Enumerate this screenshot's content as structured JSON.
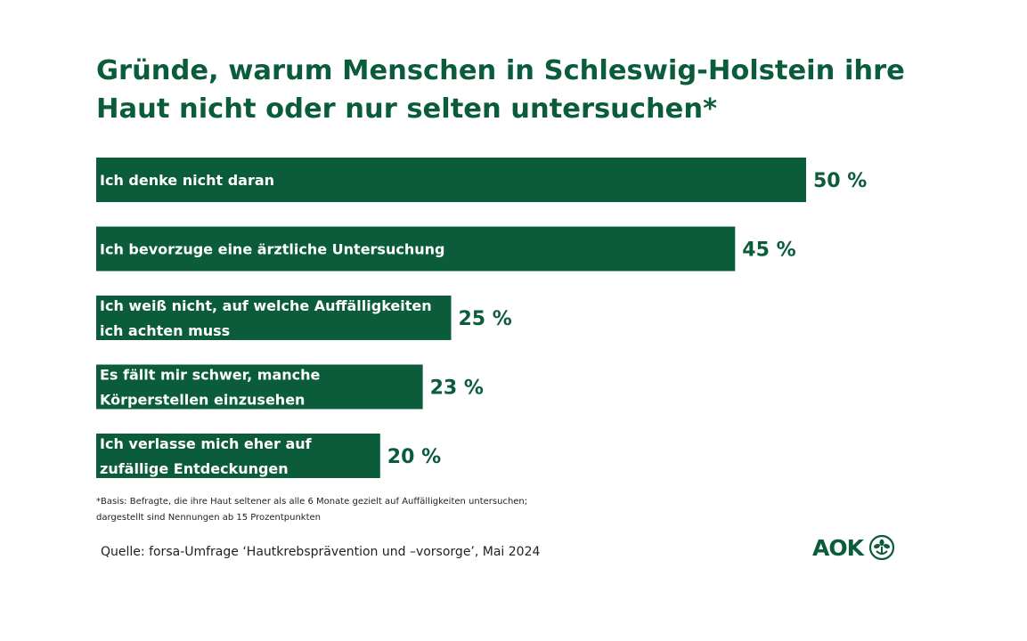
{
  "colors": {
    "bar": "#0a5c3b",
    "text": "#0a5c3b",
    "label": "#ffffff"
  },
  "chart_data": {
    "type": "bar",
    "orientation": "horizontal",
    "title": "Gründe, warum Menschen in Schleswig-Holstein ihre Haut nicht oder nur selten untersuchen*",
    "title_lines": [
      "Gründe, warum Menschen in Schleswig-Holstein ihre",
      "Haut nicht oder nur selten untersuchen*"
    ],
    "categories": [
      "Ich denke nicht daran",
      "Ich bevorzuge eine ärztliche Untersuchung",
      "Ich weiß nicht, auf welche Auffälligkeiten ich achten muss",
      "Es fällt mir schwer, manche Körperstellen einzusehen",
      "Ich verlasse mich eher auf zufällige Entdeckungen"
    ],
    "category_lines": [
      [
        "Ich denke nicht daran"
      ],
      [
        "Ich bevorzuge eine ärztliche Untersuchung"
      ],
      [
        "Ich weiß nicht, auf welche Auffälligkeiten",
        "ich achten muss"
      ],
      [
        "Es fällt mir schwer, manche",
        "Körperstellen einzusehen"
      ],
      [
        "Ich verlasse mich eher auf",
        "zufällige Entdeckungen"
      ]
    ],
    "values": [
      50,
      45,
      25,
      23,
      20
    ],
    "value_labels": [
      "50 %",
      "45 %",
      "25 %",
      "23 %",
      "20 %"
    ],
    "unit": "%",
    "xlim": [
      0,
      50
    ],
    "grid": false,
    "legend": "none"
  },
  "footnote": [
    "*Basis: Befragte, die ihre Haut seltener als alle 6 Monate gezielt auf Auffälligkeiten untersuchen;",
    "dargestellt sind Nennungen ab 15 Prozentpunkten"
  ],
  "source": "Quelle: forsa-Umfrage ‘Hautkrebsprävention und –vorsorge’, Mai 2024",
  "logo": {
    "text": "AOK",
    "icon": "aok-tree-icon"
  }
}
